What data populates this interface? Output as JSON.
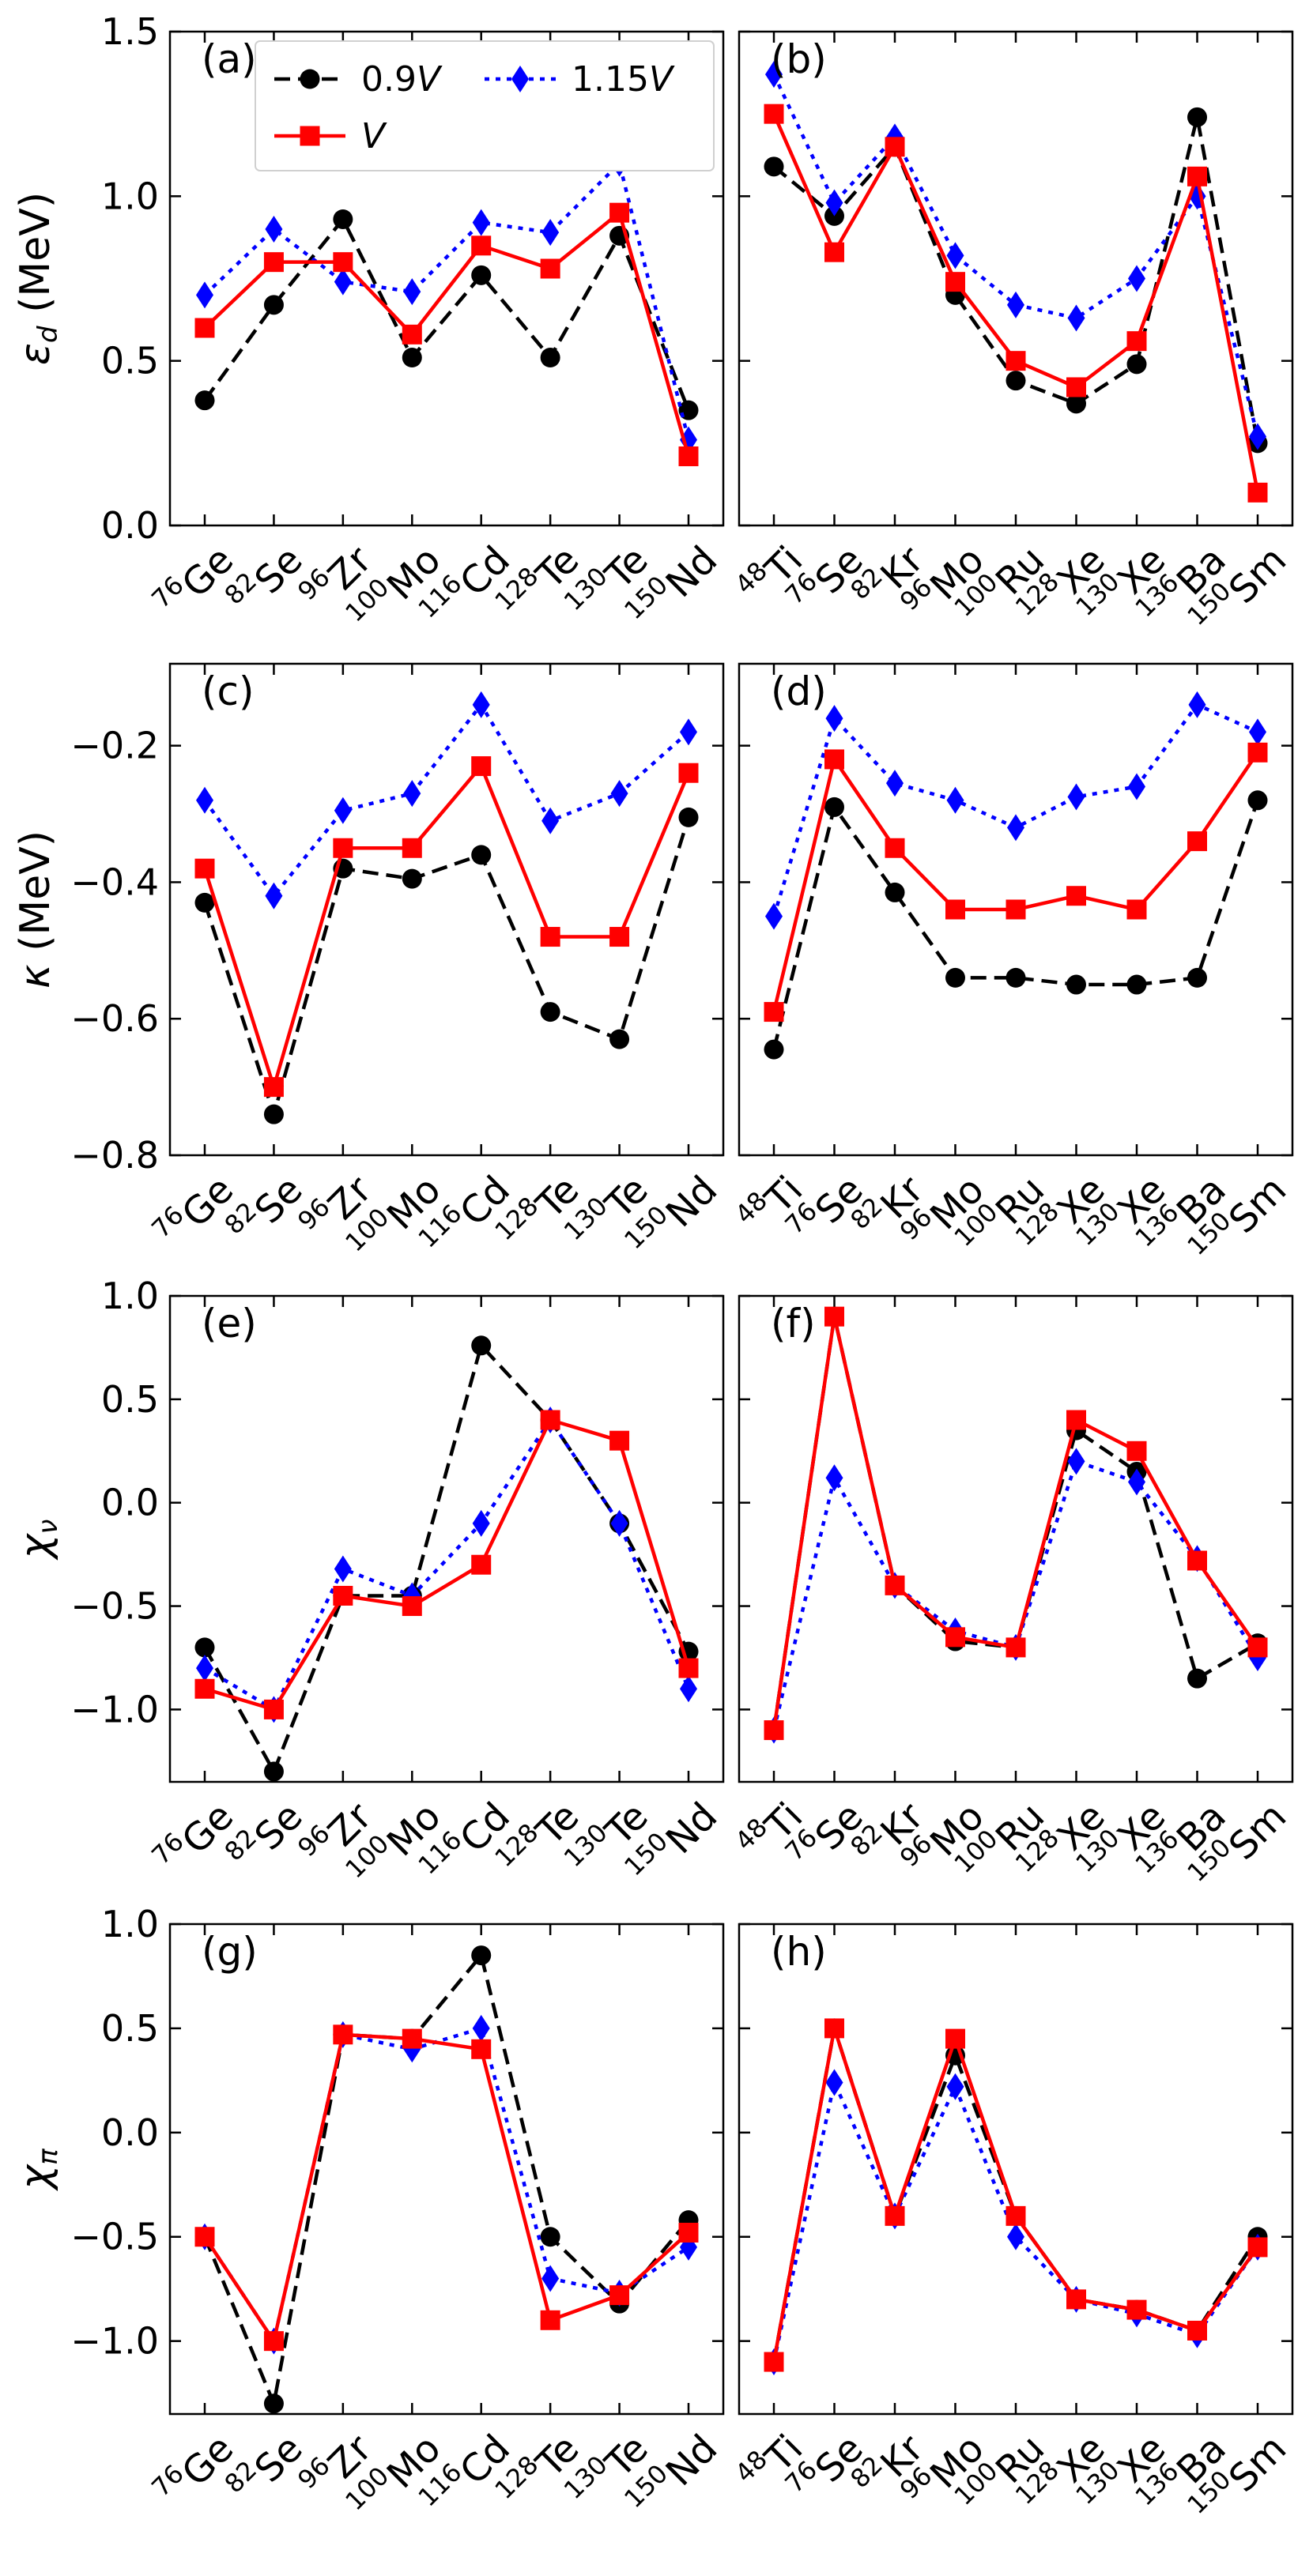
{
  "legend": {
    "items": [
      {
        "key": "s09",
        "label": "0.9",
        "italic_suffix": "V"
      },
      {
        "key": "s115",
        "label": "1.15",
        "italic_suffix": "V"
      },
      {
        "key": "sV",
        "label": "",
        "italic_suffix": "V"
      }
    ]
  },
  "styles": {
    "s09": {
      "color": "#000000",
      "marker": "circle",
      "dash": "dashed"
    },
    "sV": {
      "color": "#ff0000",
      "marker": "square",
      "dash": "solid"
    },
    "s115": {
      "color": "#0000ff",
      "marker": "diamond",
      "dash": "dotted"
    }
  },
  "x_groups": {
    "left": [
      {
        "mass": "76",
        "sym": "Ge"
      },
      {
        "mass": "82",
        "sym": "Se"
      },
      {
        "mass": "96",
        "sym": "Zr"
      },
      {
        "mass": "100",
        "sym": "Mo"
      },
      {
        "mass": "116",
        "sym": "Cd"
      },
      {
        "mass": "128",
        "sym": "Te"
      },
      {
        "mass": "130",
        "sym": "Te"
      },
      {
        "mass": "150",
        "sym": "Nd"
      }
    ],
    "right": [
      {
        "mass": "48",
        "sym": "Ti"
      },
      {
        "mass": "76",
        "sym": "Se"
      },
      {
        "mass": "82",
        "sym": "Kr"
      },
      {
        "mass": "96",
        "sym": "Mo"
      },
      {
        "mass": "100",
        "sym": "Ru"
      },
      {
        "mass": "128",
        "sym": "Xe"
      },
      {
        "mass": "130",
        "sym": "Xe"
      },
      {
        "mass": "136",
        "sym": "Ba"
      },
      {
        "mass": "150",
        "sym": "Sm"
      }
    ]
  },
  "chart_data": [
    {
      "type": "line",
      "panel": "(a)",
      "side": "left",
      "ylabel": {
        "main": "ε",
        "sub": "d",
        "unit": " (MeV)"
      },
      "ylim": [
        0.0,
        1.5
      ],
      "yticks": [
        0.0,
        0.5,
        1.0,
        1.5
      ],
      "ytick_labels": [
        "0.0",
        "0.5",
        "1.0",
        "1.5"
      ],
      "show_legend": true,
      "categories": [
        "76Ge",
        "82Se",
        "96Zr",
        "100Mo",
        "116Cd",
        "128Te",
        "130Te",
        "150Nd"
      ],
      "series": [
        {
          "key": "s09",
          "name": "0.9V",
          "values": [
            0.38,
            0.67,
            0.93,
            0.51,
            0.76,
            0.51,
            0.88,
            0.35
          ]
        },
        {
          "key": "s115",
          "name": "1.15V",
          "values": [
            0.7,
            0.9,
            0.74,
            0.71,
            0.92,
            0.89,
            1.1,
            0.26
          ]
        },
        {
          "key": "sV",
          "name": "V",
          "values": [
            0.6,
            0.8,
            0.8,
            0.58,
            0.85,
            0.78,
            0.95,
            0.21
          ]
        }
      ]
    },
    {
      "type": "line",
      "panel": "(b)",
      "side": "right",
      "ylim": [
        0.0,
        1.5
      ],
      "yticks": [
        0.0,
        0.5,
        1.0,
        1.5
      ],
      "show_legend": false,
      "categories": [
        "48Ti",
        "76Se",
        "82Kr",
        "96Mo",
        "100Ru",
        "128Xe",
        "130Xe",
        "136Ba",
        "150Sm"
      ],
      "series": [
        {
          "key": "s09",
          "name": "0.9V",
          "values": [
            1.09,
            0.94,
            1.15,
            0.7,
            0.44,
            0.37,
            0.49,
            1.24,
            0.25
          ]
        },
        {
          "key": "s115",
          "name": "1.15V",
          "values": [
            1.37,
            0.98,
            1.18,
            0.82,
            0.67,
            0.63,
            0.75,
            1.0,
            0.27
          ]
        },
        {
          "key": "sV",
          "name": "V",
          "values": [
            1.25,
            0.83,
            1.15,
            0.74,
            0.5,
            0.42,
            0.56,
            1.06,
            0.1
          ]
        }
      ]
    },
    {
      "type": "line",
      "panel": "(c)",
      "side": "left",
      "ylabel": {
        "main": "κ",
        "sub": "",
        "unit": " (MeV)"
      },
      "ylim": [
        -0.8,
        -0.08
      ],
      "yticks": [
        -0.8,
        -0.6,
        -0.4,
        -0.2
      ],
      "ytick_labels": [
        "−0.8",
        "−0.6",
        "−0.4",
        "−0.2"
      ],
      "show_legend": false,
      "categories": [
        "76Ge",
        "82Se",
        "96Zr",
        "100Mo",
        "116Cd",
        "128Te",
        "130Te",
        "150Nd"
      ],
      "series": [
        {
          "key": "s09",
          "name": "0.9V",
          "values": [
            -0.43,
            -0.74,
            -0.38,
            -0.395,
            -0.36,
            -0.59,
            -0.63,
            -0.305
          ]
        },
        {
          "key": "s115",
          "name": "1.15V",
          "values": [
            -0.28,
            -0.42,
            -0.295,
            -0.27,
            -0.14,
            -0.31,
            -0.27,
            -0.18
          ]
        },
        {
          "key": "sV",
          "name": "V",
          "values": [
            -0.38,
            -0.7,
            -0.35,
            -0.35,
            -0.23,
            -0.48,
            -0.48,
            -0.24
          ]
        }
      ]
    },
    {
      "type": "line",
      "panel": "(d)",
      "side": "right",
      "ylim": [
        -0.8,
        -0.08
      ],
      "yticks": [
        -0.8,
        -0.6,
        -0.4,
        -0.2
      ],
      "show_legend": false,
      "categories": [
        "48Ti",
        "76Se",
        "82Kr",
        "96Mo",
        "100Ru",
        "128Xe",
        "130Xe",
        "136Ba",
        "150Sm"
      ],
      "series": [
        {
          "key": "s09",
          "name": "0.9V",
          "values": [
            -0.645,
            -0.29,
            -0.415,
            -0.54,
            -0.54,
            -0.55,
            -0.55,
            -0.54,
            -0.28
          ]
        },
        {
          "key": "s115",
          "name": "1.15V",
          "values": [
            -0.45,
            -0.16,
            -0.255,
            -0.28,
            -0.32,
            -0.275,
            -0.26,
            -0.14,
            -0.18
          ]
        },
        {
          "key": "sV",
          "name": "V",
          "values": [
            -0.59,
            -0.22,
            -0.35,
            -0.44,
            -0.44,
            -0.42,
            -0.44,
            -0.34,
            -0.21
          ]
        }
      ]
    },
    {
      "type": "line",
      "panel": "(e)",
      "side": "left",
      "ylabel": {
        "main": "χ",
        "sub": "ν",
        "unit": ""
      },
      "ylim": [
        -1.35,
        1.0
      ],
      "yticks": [
        -1.0,
        -0.5,
        0.0,
        0.5,
        1.0
      ],
      "ytick_labels": [
        "−1.0",
        "−0.5",
        "0.0",
        "0.5",
        "1.0"
      ],
      "show_legend": false,
      "categories": [
        "76Ge",
        "82Se",
        "96Zr",
        "100Mo",
        "116Cd",
        "128Te",
        "130Te",
        "150Nd"
      ],
      "series": [
        {
          "key": "s09",
          "name": "0.9V",
          "values": [
            -0.7,
            -1.3,
            -0.45,
            -0.45,
            0.76,
            0.4,
            -0.1,
            -0.72
          ]
        },
        {
          "key": "s115",
          "name": "1.15V",
          "values": [
            -0.8,
            -1.0,
            -0.32,
            -0.45,
            -0.1,
            0.4,
            -0.1,
            -0.9
          ]
        },
        {
          "key": "sV",
          "name": "V",
          "values": [
            -0.9,
            -1.0,
            -0.45,
            -0.5,
            -0.3,
            0.4,
            0.3,
            -0.8
          ]
        }
      ]
    },
    {
      "type": "line",
      "panel": "(f)",
      "side": "right",
      "ylim": [
        -1.35,
        1.0
      ],
      "yticks": [
        -1.0,
        -0.5,
        0.0,
        0.5,
        1.0
      ],
      "show_legend": false,
      "categories": [
        "48Ti",
        "76Se",
        "82Kr",
        "96Mo",
        "100Ru",
        "128Xe",
        "130Xe",
        "136Ba",
        "150Sm"
      ],
      "series": [
        {
          "key": "s09",
          "name": "0.9V",
          "values": [
            -1.1,
            0.9,
            -0.4,
            -0.67,
            -0.7,
            0.35,
            0.15,
            -0.85,
            -0.68
          ]
        },
        {
          "key": "s115",
          "name": "1.15V",
          "values": [
            -1.1,
            0.12,
            -0.4,
            -0.62,
            -0.7,
            0.2,
            0.1,
            -0.27,
            -0.75
          ]
        },
        {
          "key": "sV",
          "name": "V",
          "values": [
            -1.1,
            0.9,
            -0.4,
            -0.65,
            -0.7,
            0.4,
            0.25,
            -0.28,
            -0.7
          ]
        }
      ]
    },
    {
      "type": "line",
      "panel": "(g)",
      "side": "left",
      "ylabel": {
        "main": "χ",
        "sub": "π",
        "unit": ""
      },
      "ylim": [
        -1.35,
        1.0
      ],
      "yticks": [
        -1.0,
        -0.5,
        0.0,
        0.5,
        1.0
      ],
      "ytick_labels": [
        "−1.0",
        "−0.5",
        "0.0",
        "0.5",
        "1.0"
      ],
      "show_legend": false,
      "categories": [
        "76Ge",
        "82Se",
        "96Zr",
        "100Mo",
        "116Cd",
        "128Te",
        "130Te",
        "150Nd"
      ],
      "series": [
        {
          "key": "s09",
          "name": "0.9V",
          "values": [
            -0.5,
            -1.3,
            0.47,
            0.45,
            0.85,
            -0.5,
            -0.82,
            -0.42
          ]
        },
        {
          "key": "s115",
          "name": "1.15V",
          "values": [
            -0.5,
            -1.0,
            0.47,
            0.4,
            0.5,
            -0.7,
            -0.77,
            -0.55
          ]
        },
        {
          "key": "sV",
          "name": "V",
          "values": [
            -0.5,
            -1.0,
            0.47,
            0.45,
            0.4,
            -0.9,
            -0.78,
            -0.48
          ]
        }
      ]
    },
    {
      "type": "line",
      "panel": "(h)",
      "side": "right",
      "ylim": [
        -1.35,
        1.0
      ],
      "yticks": [
        -1.0,
        -0.5,
        0.0,
        0.5,
        1.0
      ],
      "show_legend": false,
      "categories": [
        "48Ti",
        "76Se",
        "82Kr",
        "96Mo",
        "100Ru",
        "128Xe",
        "130Xe",
        "136Ba",
        "150Sm"
      ],
      "series": [
        {
          "key": "s09",
          "name": "0.9V",
          "values": [
            -1.1,
            0.5,
            -0.4,
            0.37,
            -0.4,
            -0.8,
            -0.85,
            -0.95,
            -0.5
          ]
        },
        {
          "key": "s115",
          "name": "1.15V",
          "values": [
            -1.1,
            0.24,
            -0.4,
            0.22,
            -0.5,
            -0.8,
            -0.87,
            -0.97,
            -0.55
          ]
        },
        {
          "key": "sV",
          "name": "V",
          "values": [
            -1.1,
            0.5,
            -0.4,
            0.45,
            -0.4,
            -0.8,
            -0.85,
            -0.95,
            -0.55
          ]
        }
      ]
    }
  ]
}
